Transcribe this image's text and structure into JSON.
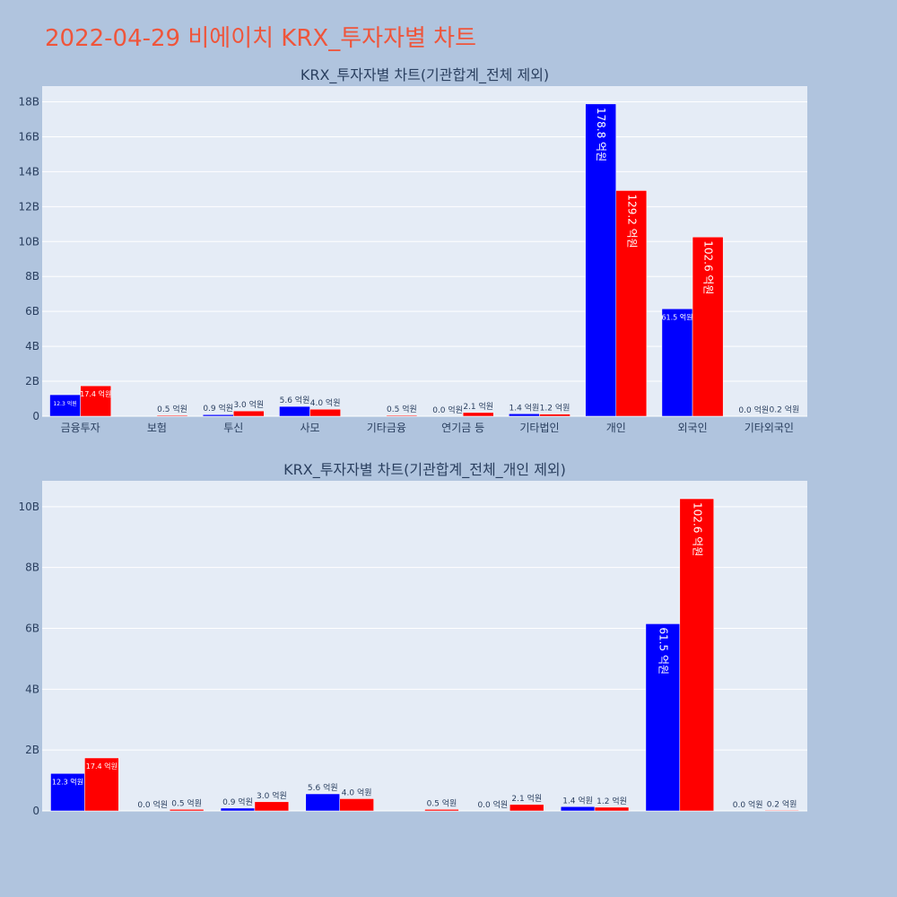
{
  "page": {
    "title": "2022-04-29 비에이치 KRX_투자자별 차트",
    "background": "#b0c4de",
    "title_color": "#ef553b"
  },
  "colors": {
    "buy": "#0000ff",
    "sell": "#ff0000",
    "plot_bg": "#e5ecf6",
    "grid": "#ffffff",
    "text": "#2a3f5f"
  },
  "chart_data": [
    {
      "type": "bar",
      "title": "KRX_투자자별 차트(기관합계_전체 제외)",
      "categories": [
        "금융투자",
        "보험",
        "투신",
        "사모",
        "기타금융",
        "연기금 등",
        "기타법인",
        "개인",
        "외국인",
        "기타외국인"
      ],
      "series": [
        {
          "color": "#0000ff",
          "values": [
            1230000000,
            null,
            90000000,
            560000000,
            null,
            0,
            140000000,
            17880000000,
            6150000000,
            0
          ],
          "labels": [
            "12.3 억원",
            "",
            "0.9 억원",
            "5.6 억원",
            "",
            "0.0 억원",
            "1.4 억원",
            "178.8 억원",
            "61.5 억원",
            "0.0 억원"
          ]
        },
        {
          "color": "#ff0000",
          "values": [
            1740000000,
            50000000,
            300000000,
            400000000,
            50000000,
            210000000,
            120000000,
            12920000000,
            10260000000,
            20000000
          ],
          "labels": [
            "17.4 억원",
            "0.5 억원",
            "3.0 억원",
            "4.0 억원",
            "0.5 억원",
            "2.1 억원",
            "1.2 억원",
            "129.2 억원",
            "102.6 억원",
            "0.2 억원"
          ]
        }
      ],
      "ylim": [
        0,
        18900000000
      ],
      "yticks": [
        0,
        2000000000,
        4000000000,
        6000000000,
        8000000000,
        10000000000,
        12000000000,
        14000000000,
        16000000000,
        18000000000
      ],
      "ytick_labels": [
        "0",
        "2B",
        "4B",
        "6B",
        "8B",
        "10B",
        "12B",
        "14B",
        "16B",
        "18B"
      ],
      "grid": true
    },
    {
      "type": "bar",
      "title": "KRX_투자자별 차트(기관합계_전체_개인 제외)",
      "categories": [
        "금융투자",
        "보험",
        "투신",
        "사모",
        "기타금융",
        "연기금 등",
        "기타법인",
        "외국인",
        "기타외국인"
      ],
      "series": [
        {
          "color": "#0000ff",
          "values": [
            1230000000,
            0,
            90000000,
            560000000,
            null,
            0,
            140000000,
            6150000000,
            0
          ],
          "labels": [
            "12.3 억원",
            "0.0 억원",
            "0.9 억원",
            "5.6 억원",
            "",
            "0.0 억원",
            "1.4 억원",
            "61.5 억원",
            "0.0 억원"
          ]
        },
        {
          "color": "#ff0000",
          "values": [
            1740000000,
            50000000,
            300000000,
            400000000,
            50000000,
            210000000,
            120000000,
            10260000000,
            20000000
          ],
          "labels": [
            "17.4 억원",
            "0.5 억원",
            "3.0 억원",
            "4.0 억원",
            "0.5 억원",
            "2.1 억원",
            "1.2 억원",
            "102.6 억원",
            "0.2 억원"
          ]
        }
      ],
      "ylim": [
        0,
        10850000000
      ],
      "yticks": [
        0,
        2000000000,
        4000000000,
        6000000000,
        8000000000,
        10000000000
      ],
      "ytick_labels": [
        "0",
        "2B",
        "4B",
        "6B",
        "8B",
        "10B"
      ],
      "grid": true
    }
  ]
}
